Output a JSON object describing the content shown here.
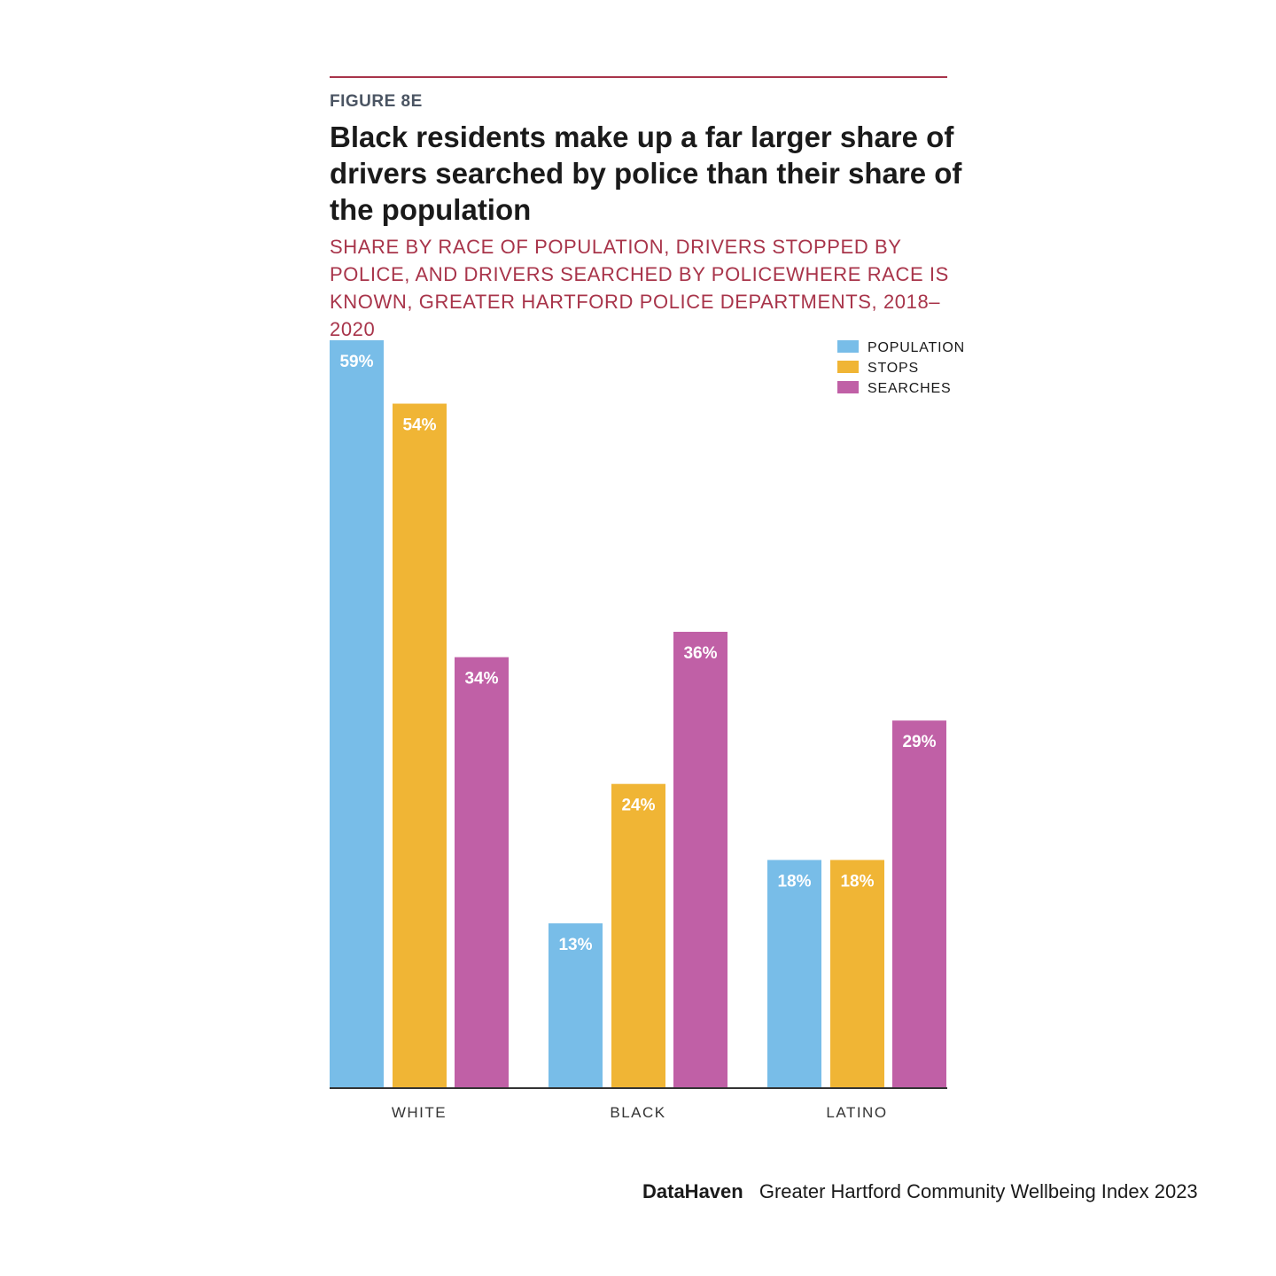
{
  "figure_label": "FIGURE 8E",
  "footer": {
    "brand": "DataHaven",
    "publication": "Greater Hartford Community Wellbeing Index 2023"
  },
  "colors": {
    "rule": "#a8344a",
    "subtitle": "#a8344a",
    "population": "#78bde8",
    "stops": "#f0b535",
    "searches": "#c060a6",
    "axis": "#333333"
  },
  "chart_data": {
    "type": "bar",
    "title": "Black residents make up a far larger share of drivers searched by police than their share of the population",
    "subtitle": "SHARE BY RACE OF POPULATION, DRIVERS STOPPED BY POLICE, AND DRIVERS SEARCHED BY POLICEWHERE RACE IS KNOWN, GREATER HARTFORD POLICE DEPARTMENTS, 2018–2020",
    "xlabel": "",
    "ylabel": "",
    "ylim": [
      0,
      59
    ],
    "grid": false,
    "legend_position": "top-right",
    "categories": [
      "WHITE",
      "BLACK",
      "LATINO"
    ],
    "series": [
      {
        "name": "POPULATION",
        "color": "#78bde8",
        "values": [
          59,
          13,
          18
        ],
        "labels": [
          "59%",
          "13%",
          "18%"
        ]
      },
      {
        "name": "STOPS",
        "color": "#f0b535",
        "values": [
          54,
          24,
          18
        ],
        "labels": [
          "54%",
          "24%",
          "18%"
        ]
      },
      {
        "name": "SEARCHES",
        "color": "#c060a6",
        "values": [
          34,
          36,
          29
        ],
        "labels": [
          "34%",
          "36%",
          "29%"
        ]
      }
    ]
  }
}
